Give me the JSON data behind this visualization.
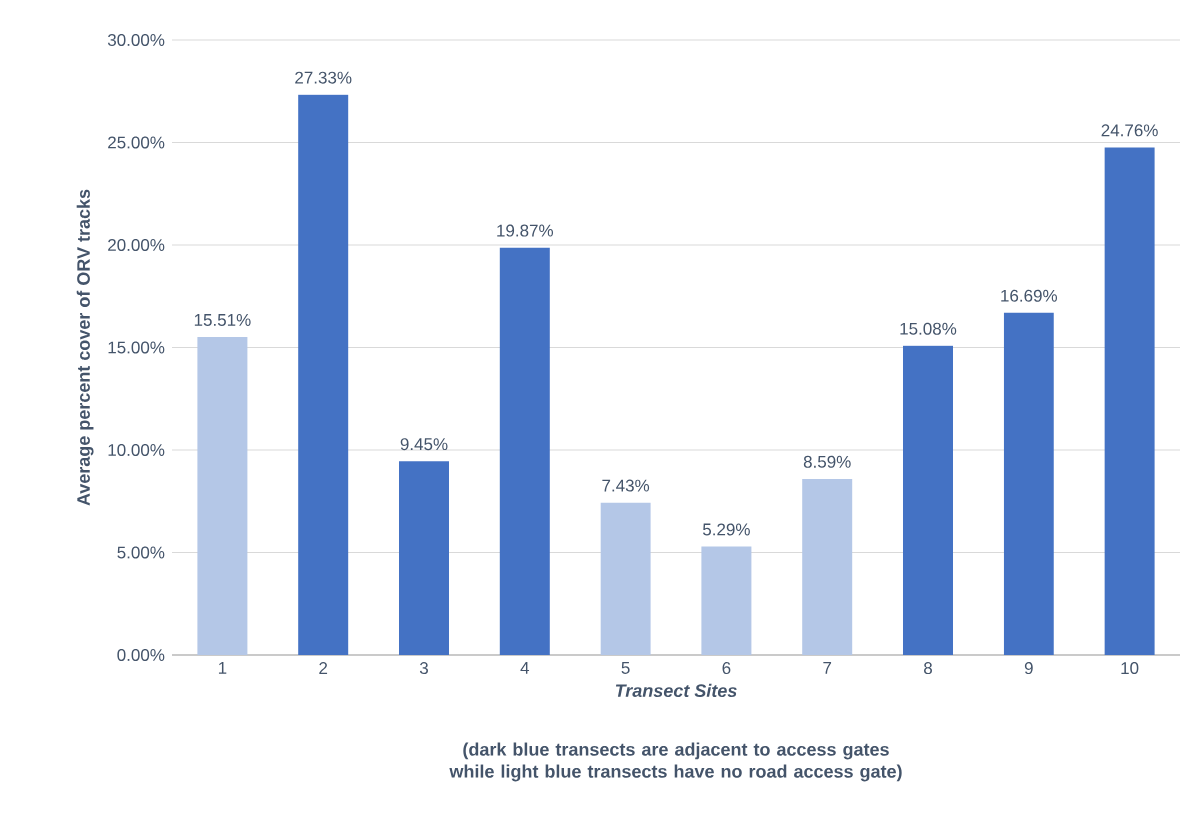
{
  "chart_data": {
    "type": "bar",
    "categories": [
      "1",
      "2",
      "3",
      "4",
      "5",
      "6",
      "7",
      "8",
      "9",
      "10"
    ],
    "values": [
      15.51,
      27.33,
      9.45,
      19.87,
      7.43,
      5.29,
      8.59,
      15.08,
      16.69,
      24.76
    ],
    "colors": [
      "#b4c7e7",
      "#4472c4",
      "#4472c4",
      "#4472c4",
      "#b4c7e7",
      "#b4c7e7",
      "#b4c7e7",
      "#4472c4",
      "#4472c4",
      "#4472c4"
    ],
    "value_labels": [
      "15.51%",
      "27.33%",
      "9.45%",
      "19.87%",
      "7.43%",
      "5.29%",
      "8.59%",
      "15.08%",
      "16.69%",
      "24.76%"
    ],
    "xlabel": "Transect Sites",
    "ylabel": "Average percent cover of ORV tracks",
    "annotations": [
      "(dark blue transects are adjacent to access gates while light blue transects have no road access gate)"
    ],
    "ylim": [
      0,
      30
    ],
    "yticks": [
      {
        "value": 0,
        "label": "0.00%"
      },
      {
        "value": 5,
        "label": "5.00%"
      },
      {
        "value": 10,
        "label": "10.00%"
      },
      {
        "value": 15,
        "label": "15.00%"
      },
      {
        "value": 20,
        "label": "20.00%"
      },
      {
        "value": 25,
        "label": "25.00%"
      },
      {
        "value": 30,
        "label": "30.00%"
      }
    ],
    "grid": "y"
  }
}
